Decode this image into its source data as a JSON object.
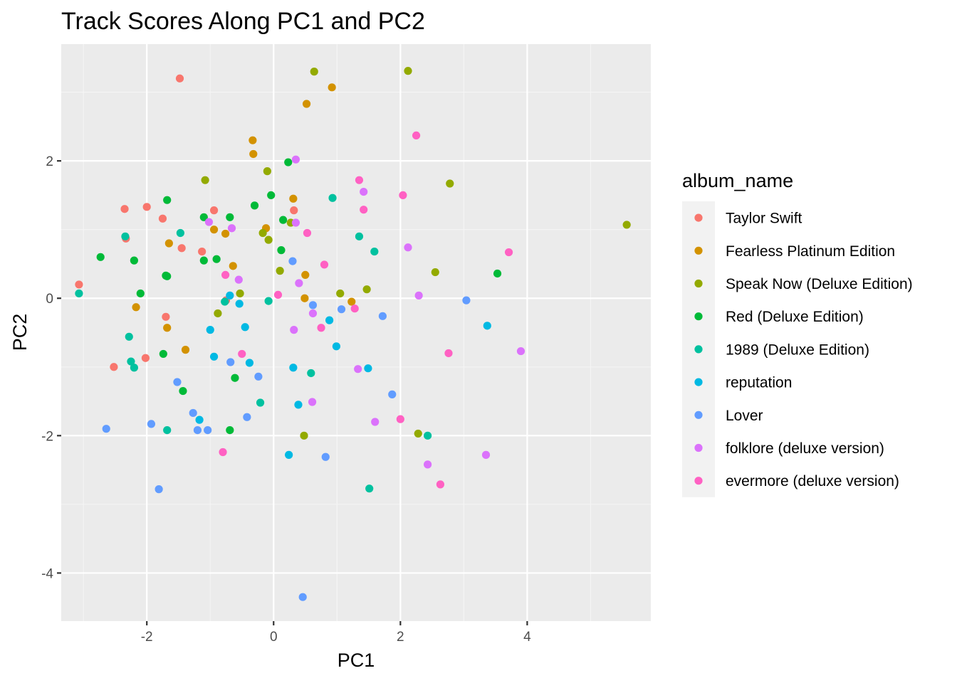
{
  "chart_data": {
    "type": "scatter",
    "title": "Track Scores Along PC1 and PC2",
    "xlabel": "PC1",
    "ylabel": "PC2",
    "xlim": [
      -3.35,
      5.95
    ],
    "ylim": [
      -4.7,
      3.7
    ],
    "x_ticks": [
      -2,
      0,
      2,
      4
    ],
    "y_ticks": [
      2,
      0,
      -2,
      -4
    ],
    "x_tick_labels": [
      "-2",
      "0",
      "2",
      "4"
    ],
    "y_tick_labels": [
      "2",
      "0",
      "-2",
      "-4"
    ],
    "grid": true,
    "legend": {
      "title": "album_name",
      "position": "right"
    },
    "series": [
      {
        "name": "Taylor Swift",
        "color": "#F8766D",
        "points": [
          [
            -1.48,
            3.2
          ],
          [
            -2.35,
            1.3
          ],
          [
            -2.0,
            1.33
          ],
          [
            -1.75,
            1.16
          ],
          [
            -2.33,
            0.87
          ],
          [
            -1.45,
            0.73
          ],
          [
            -1.13,
            0.68
          ],
          [
            -0.94,
            1.28
          ],
          [
            -3.07,
            0.2
          ],
          [
            -1.7,
            -0.27
          ],
          [
            -0.75,
            -0.03
          ],
          [
            -2.02,
            -0.87
          ],
          [
            -2.52,
            -1.0
          ],
          [
            0.32,
            1.28
          ]
        ]
      },
      {
        "name": "Fearless Platinum Edition",
        "color": "#D39200",
        "points": [
          [
            0.52,
            2.83
          ],
          [
            0.92,
            3.07
          ],
          [
            -0.33,
            2.3
          ],
          [
            -0.32,
            2.1
          ],
          [
            0.31,
            1.45
          ],
          [
            -0.94,
            1.0
          ],
          [
            -0.12,
            1.02
          ],
          [
            -0.76,
            0.94
          ],
          [
            -1.65,
            0.8
          ],
          [
            -0.64,
            0.47
          ],
          [
            0.5,
            0.34
          ],
          [
            0.49,
            0.0
          ],
          [
            -2.17,
            -0.13
          ],
          [
            -1.68,
            -0.43
          ],
          [
            -1.39,
            -0.75
          ],
          [
            1.23,
            -0.05
          ]
        ]
      },
      {
        "name": "Speak Now (Deluxe Edition)",
        "color": "#93AA00",
        "points": [
          [
            0.64,
            3.3
          ],
          [
            2.12,
            3.31
          ],
          [
            -0.1,
            1.85
          ],
          [
            -1.08,
            1.72
          ],
          [
            2.78,
            1.67
          ],
          [
            0.27,
            1.1
          ],
          [
            -0.17,
            0.95
          ],
          [
            -0.08,
            0.85
          ],
          [
            0.1,
            0.4
          ],
          [
            2.55,
            0.38
          ],
          [
            1.47,
            0.13
          ],
          [
            1.05,
            0.07
          ],
          [
            -0.53,
            0.07
          ],
          [
            -0.88,
            -0.22
          ],
          [
            0.48,
            -2.0
          ],
          [
            2.28,
            -1.97
          ],
          [
            5.57,
            1.07
          ]
        ]
      },
      {
        "name": "Red (Deluxe Edition)",
        "color": "#00BA38",
        "points": [
          [
            0.23,
            1.98
          ],
          [
            -1.68,
            1.43
          ],
          [
            -0.04,
            1.5
          ],
          [
            -0.3,
            1.35
          ],
          [
            -1.1,
            1.18
          ],
          [
            -0.69,
            1.18
          ],
          [
            0.15,
            1.14
          ],
          [
            -2.73,
            0.6
          ],
          [
            -2.2,
            0.55
          ],
          [
            -1.1,
            0.55
          ],
          [
            -0.9,
            0.57
          ],
          [
            0.12,
            0.7
          ],
          [
            -1.7,
            0.33
          ],
          [
            -1.68,
            0.32
          ],
          [
            -2.1,
            0.07
          ],
          [
            -1.74,
            -0.81
          ],
          [
            -0.61,
            -1.16
          ],
          [
            -1.43,
            -1.35
          ],
          [
            -0.69,
            -1.92
          ],
          [
            3.53,
            0.36
          ]
        ]
      },
      {
        "name": "1989 (Deluxe Edition)",
        "color": "#00C19F",
        "points": [
          [
            0.93,
            1.46
          ],
          [
            1.35,
            0.9
          ],
          [
            1.59,
            0.68
          ],
          [
            -1.47,
            0.95
          ],
          [
            -2.34,
            0.9
          ],
          [
            -3.07,
            0.07
          ],
          [
            -0.08,
            -0.04
          ],
          [
            -0.77,
            -0.05
          ],
          [
            -2.28,
            -0.56
          ],
          [
            -2.25,
            -0.92
          ],
          [
            -2.2,
            -1.01
          ],
          [
            0.59,
            -1.09
          ],
          [
            -0.21,
            -1.52
          ],
          [
            -1.68,
            -1.92
          ],
          [
            2.43,
            -2.0
          ],
          [
            1.51,
            -2.77
          ]
        ]
      },
      {
        "name": "reputation",
        "color": "#00B9E3",
        "points": [
          [
            -0.69,
            0.04
          ],
          [
            -0.54,
            -0.08
          ],
          [
            -1.0,
            -0.46
          ],
          [
            -0.45,
            -0.42
          ],
          [
            0.88,
            -0.32
          ],
          [
            0.99,
            -0.7
          ],
          [
            -0.94,
            -0.85
          ],
          [
            -0.38,
            -0.94
          ],
          [
            0.31,
            -1.01
          ],
          [
            1.49,
            -1.02
          ],
          [
            0.39,
            -1.55
          ],
          [
            -1.17,
            -1.77
          ],
          [
            0.24,
            -2.28
          ],
          [
            3.37,
            -0.4
          ]
        ]
      },
      {
        "name": "Lover",
        "color": "#619CFF",
        "points": [
          [
            0.3,
            0.54
          ],
          [
            0.62,
            -0.1
          ],
          [
            1.07,
            -0.16
          ],
          [
            1.72,
            -0.26
          ],
          [
            3.04,
            -0.03
          ],
          [
            -1.52,
            -1.22
          ],
          [
            -0.24,
            -1.14
          ],
          [
            -0.68,
            -0.93
          ],
          [
            -1.27,
            -1.67
          ],
          [
            -1.2,
            -1.92
          ],
          [
            -1.04,
            -1.92
          ],
          [
            -0.42,
            -1.73
          ],
          [
            -1.93,
            -1.83
          ],
          [
            -2.64,
            -1.9
          ],
          [
            -1.81,
            -2.78
          ],
          [
            1.87,
            -1.4
          ],
          [
            0.82,
            -2.31
          ],
          [
            0.46,
            -4.35
          ]
        ]
      },
      {
        "name": "folklore (deluxe version)",
        "color": "#DB72FB",
        "points": [
          [
            0.35,
            2.02
          ],
          [
            1.42,
            1.55
          ],
          [
            -1.02,
            1.11
          ],
          [
            -0.66,
            1.02
          ],
          [
            0.35,
            1.1
          ],
          [
            -0.55,
            0.27
          ],
          [
            0.4,
            0.22
          ],
          [
            2.12,
            0.74
          ],
          [
            2.29,
            0.04
          ],
          [
            0.62,
            -0.22
          ],
          [
            0.32,
            -0.46
          ],
          [
            1.33,
            -1.03
          ],
          [
            0.61,
            -1.51
          ],
          [
            1.6,
            -1.8
          ],
          [
            2.43,
            -2.42
          ],
          [
            3.35,
            -2.28
          ],
          [
            3.9,
            -0.77
          ]
        ]
      },
      {
        "name": "evermore (deluxe version)",
        "color": "#FF61C3",
        "points": [
          [
            2.25,
            2.37
          ],
          [
            1.35,
            1.72
          ],
          [
            2.04,
            1.5
          ],
          [
            1.42,
            1.29
          ],
          [
            0.53,
            0.95
          ],
          [
            3.71,
            0.67
          ],
          [
            0.8,
            0.49
          ],
          [
            -0.76,
            0.34
          ],
          [
            0.07,
            0.05
          ],
          [
            1.28,
            -0.15
          ],
          [
            0.75,
            -0.43
          ],
          [
            -0.5,
            -0.81
          ],
          [
            2.76,
            -0.8
          ],
          [
            2.0,
            -1.76
          ],
          [
            -0.8,
            -2.24
          ],
          [
            2.63,
            -2.71
          ]
        ]
      }
    ]
  }
}
